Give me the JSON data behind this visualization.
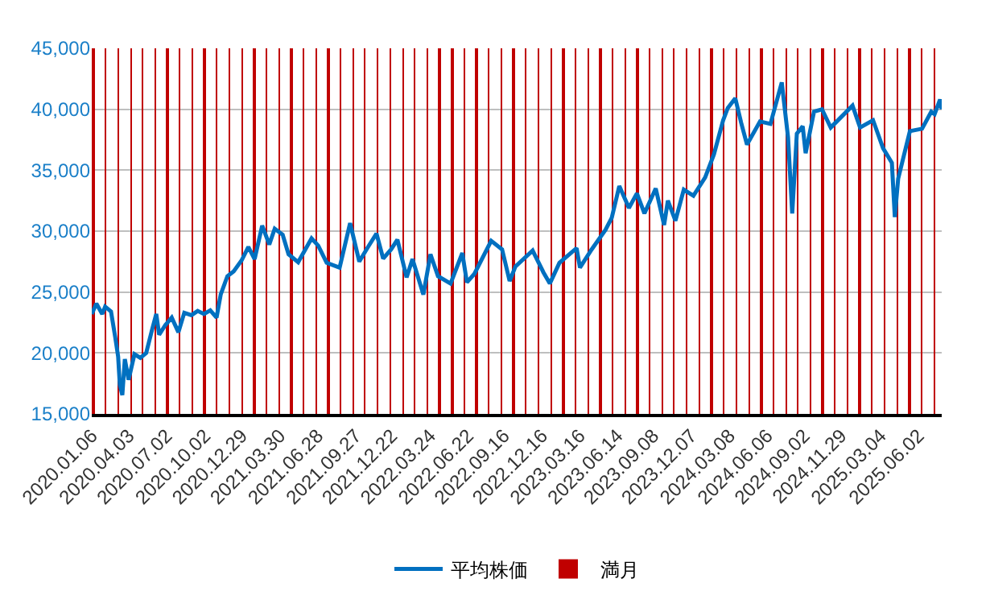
{
  "chart_data": {
    "type": "line",
    "xlim": [
      "2020-01-06",
      "2025-07-28"
    ],
    "xticks": [
      {
        "value": "2020-01-06",
        "label": "2020.01.06"
      },
      {
        "value": "2020-04-03",
        "label": "2020.04.03"
      },
      {
        "value": "2020-07-02",
        "label": "2020.07.02"
      },
      {
        "value": "2020-10-02",
        "label": "2020.10.02"
      },
      {
        "value": "2020-12-29",
        "label": "2020.12.29"
      },
      {
        "value": "2021-03-30",
        "label": "2021.03.30"
      },
      {
        "value": "2021-06-28",
        "label": "2021.06.28"
      },
      {
        "value": "2021-09-27",
        "label": "2021.09.27"
      },
      {
        "value": "2021-12-22",
        "label": "2021.12.22"
      },
      {
        "value": "2022-03-24",
        "label": "2022.03.24"
      },
      {
        "value": "2022-06-22",
        "label": "2022.06.22"
      },
      {
        "value": "2022-09-16",
        "label": "2022.09.16"
      },
      {
        "value": "2022-12-16",
        "label": "2022.12.16"
      },
      {
        "value": "2023-03-16",
        "label": "2023.03.16"
      },
      {
        "value": "2023-06-14",
        "label": "2023.06.14"
      },
      {
        "value": "2023-09-08",
        "label": "2023.09.08"
      },
      {
        "value": "2023-12-07",
        "label": "2023.12.07"
      },
      {
        "value": "2024-03-08",
        "label": "2024.03.08"
      },
      {
        "value": "2024-06-06",
        "label": "2024.06.06"
      },
      {
        "value": "2024-09-02",
        "label": "2024.09.02"
      },
      {
        "value": "2024-11-29",
        "label": "2024.11.29"
      },
      {
        "value": "2025-03-04",
        "label": "2025.03.04"
      },
      {
        "value": "2025-06-02",
        "label": "2025.06.02"
      }
    ],
    "ylim": [
      15000,
      45000
    ],
    "yticks": [
      {
        "value": 15000,
        "label": "15,000"
      },
      {
        "value": 20000,
        "label": "20,000"
      },
      {
        "value": 25000,
        "label": "25,000"
      },
      {
        "value": 30000,
        "label": "30,000"
      },
      {
        "value": 35000,
        "label": "35,000"
      },
      {
        "value": 40000,
        "label": "40,000"
      },
      {
        "value": 45000,
        "label": "45,000"
      }
    ],
    "grid": "y",
    "legend": "bottom",
    "marker": "none",
    "series": [
      {
        "name": "満月",
        "type": "bar",
        "color": "#c00000",
        "x": [
          "2020-01-10",
          "2020-02-09",
          "2020-03-09",
          "2020-04-08",
          "2020-05-07",
          "2020-06-05",
          "2020-07-05",
          "2020-08-03",
          "2020-09-02",
          "2020-10-01",
          "2020-10-31",
          "2020-11-30",
          "2020-12-30",
          "2021-01-28",
          "2021-02-27",
          "2021-03-28",
          "2021-04-27",
          "2021-05-26",
          "2021-06-24",
          "2021-07-24",
          "2021-08-22",
          "2021-09-21",
          "2021-10-20",
          "2021-11-19",
          "2021-12-19",
          "2022-01-18",
          "2022-02-16",
          "2022-03-18",
          "2022-04-16",
          "2022-05-16",
          "2022-06-14",
          "2022-07-13",
          "2022-08-12",
          "2022-09-10",
          "2022-10-09",
          "2022-11-08",
          "2022-12-08",
          "2023-01-07",
          "2023-02-06",
          "2023-03-07",
          "2023-04-06",
          "2023-05-05",
          "2023-06-04",
          "2023-07-03",
          "2023-08-01",
          "2023-08-31",
          "2023-09-29",
          "2023-10-28",
          "2023-11-27",
          "2023-12-27",
          "2024-01-25",
          "2024-02-24",
          "2024-03-25",
          "2024-04-24",
          "2024-05-23",
          "2024-06-22",
          "2024-07-21",
          "2024-08-19",
          "2024-09-18",
          "2024-10-17",
          "2024-11-15",
          "2024-12-15",
          "2025-01-13",
          "2025-02-12",
          "2025-03-14",
          "2025-04-13",
          "2025-05-12",
          "2025-06-11",
          "2025-07-10"
        ],
        "values": [
          45000,
          45000,
          45000,
          45000,
          45000,
          45000,
          45000,
          45000,
          45000,
          45000,
          45000,
          45000,
          45000,
          45000,
          45000,
          45000,
          45000,
          45000,
          45000,
          45000,
          45000,
          45000,
          45000,
          45000,
          45000,
          45000,
          45000,
          45000,
          45000,
          45000,
          45000,
          45000,
          45000,
          45000,
          45000,
          45000,
          45000,
          45000,
          45000,
          45000,
          45000,
          45000,
          45000,
          45000,
          45000,
          45000,
          45000,
          45000,
          45000,
          45000,
          45000,
          45000,
          45000,
          45000,
          45000,
          45000,
          45000,
          45000,
          45000,
          45000,
          45000,
          45000,
          45000,
          45000,
          45000,
          45000,
          45000,
          45000,
          45000
        ]
      },
      {
        "name": "平均株価",
        "color": "#0070c0",
        "x": [
          "2020-01-06",
          "2020-01-17",
          "2020-01-31",
          "2020-02-07",
          "2020-02-21",
          "2020-03-02",
          "2020-03-09",
          "2020-03-13",
          "2020-03-19",
          "2020-03-25",
          "2020-04-03",
          "2020-04-17",
          "2020-05-01",
          "2020-05-15",
          "2020-05-29",
          "2020-06-08",
          "2020-06-15",
          "2020-06-30",
          "2020-07-15",
          "2020-07-31",
          "2020-08-14",
          "2020-08-31",
          "2020-09-15",
          "2020-09-30",
          "2020-10-15",
          "2020-10-30",
          "2020-11-09",
          "2020-11-25",
          "2020-12-10",
          "2020-12-29",
          "2021-01-14",
          "2021-01-29",
          "2021-02-16",
          "2021-03-05",
          "2021-03-18",
          "2021-04-06",
          "2021-04-20",
          "2021-05-13",
          "2021-06-14",
          "2021-06-30",
          "2021-07-20",
          "2021-08-20",
          "2021-09-14",
          "2021-10-06",
          "2021-10-25",
          "2021-11-16",
          "2021-12-02",
          "2021-12-21",
          "2022-01-05",
          "2022-01-27",
          "2022-02-10",
          "2022-03-08",
          "2022-03-25",
          "2022-04-12",
          "2022-05-12",
          "2022-06-09",
          "2022-06-20",
          "2022-07-08",
          "2022-08-17",
          "2022-09-12",
          "2022-09-30",
          "2022-10-14",
          "2022-11-24",
          "2022-12-20",
          "2023-01-04",
          "2023-01-27",
          "2023-03-09",
          "2023-03-17",
          "2023-04-14",
          "2023-05-17",
          "2023-06-01",
          "2023-06-19",
          "2023-07-12",
          "2023-07-31",
          "2023-08-18",
          "2023-09-14",
          "2023-10-04",
          "2023-10-13",
          "2023-10-31",
          "2023-11-20",
          "2023-12-13",
          "2024-01-10",
          "2024-01-31",
          "2024-02-22",
          "2024-03-04",
          "2024-03-22",
          "2024-04-05",
          "2024-04-19",
          "2024-05-20",
          "2024-06-14",
          "2024-07-11",
          "2024-07-26",
          "2024-08-05",
          "2024-08-16",
          "2024-08-30",
          "2024-09-06",
          "2024-09-26",
          "2024-10-15",
          "2024-11-05",
          "2024-12-27",
          "2025-01-14",
          "2025-02-14",
          "2025-03-10",
          "2025-03-31",
          "2025-04-07",
          "2025-04-15",
          "2025-05-13",
          "2025-06-11",
          "2025-07-03",
          "2025-07-11",
          "2025-07-24",
          "2025-07-28"
        ],
        "values": [
          23200,
          24050,
          23200,
          23800,
          23400,
          21300,
          19700,
          17400,
          16550,
          19500,
          17800,
          19900,
          19600,
          20000,
          21900,
          23200,
          21500,
          22300,
          22900,
          21700,
          23300,
          23100,
          23450,
          23200,
          23500,
          22900,
          24800,
          26300,
          26700,
          27600,
          28700,
          27700,
          30450,
          28900,
          30200,
          29700,
          28100,
          27450,
          29400,
          28800,
          27400,
          27000,
          30650,
          27500,
          28600,
          29800,
          27750,
          28500,
          29300,
          26200,
          27700,
          24800,
          28100,
          26300,
          25700,
          28200,
          25800,
          26500,
          29200,
          28500,
          25900,
          27100,
          28400,
          26600,
          25700,
          27400,
          28600,
          27000,
          28500,
          30100,
          31100,
          33700,
          31900,
          33100,
          31450,
          33500,
          30500,
          32500,
          30850,
          33400,
          32900,
          34400,
          36300,
          39100,
          40100,
          40900,
          38900,
          37100,
          39000,
          38800,
          42200,
          37700,
          31450,
          38000,
          38600,
          36400,
          39800,
          40000,
          38500,
          40300,
          38500,
          39100,
          36800,
          35600,
          31150,
          34300,
          38200,
          38400,
          39800,
          39600,
          40800,
          40000
        ]
      }
    ]
  }
}
